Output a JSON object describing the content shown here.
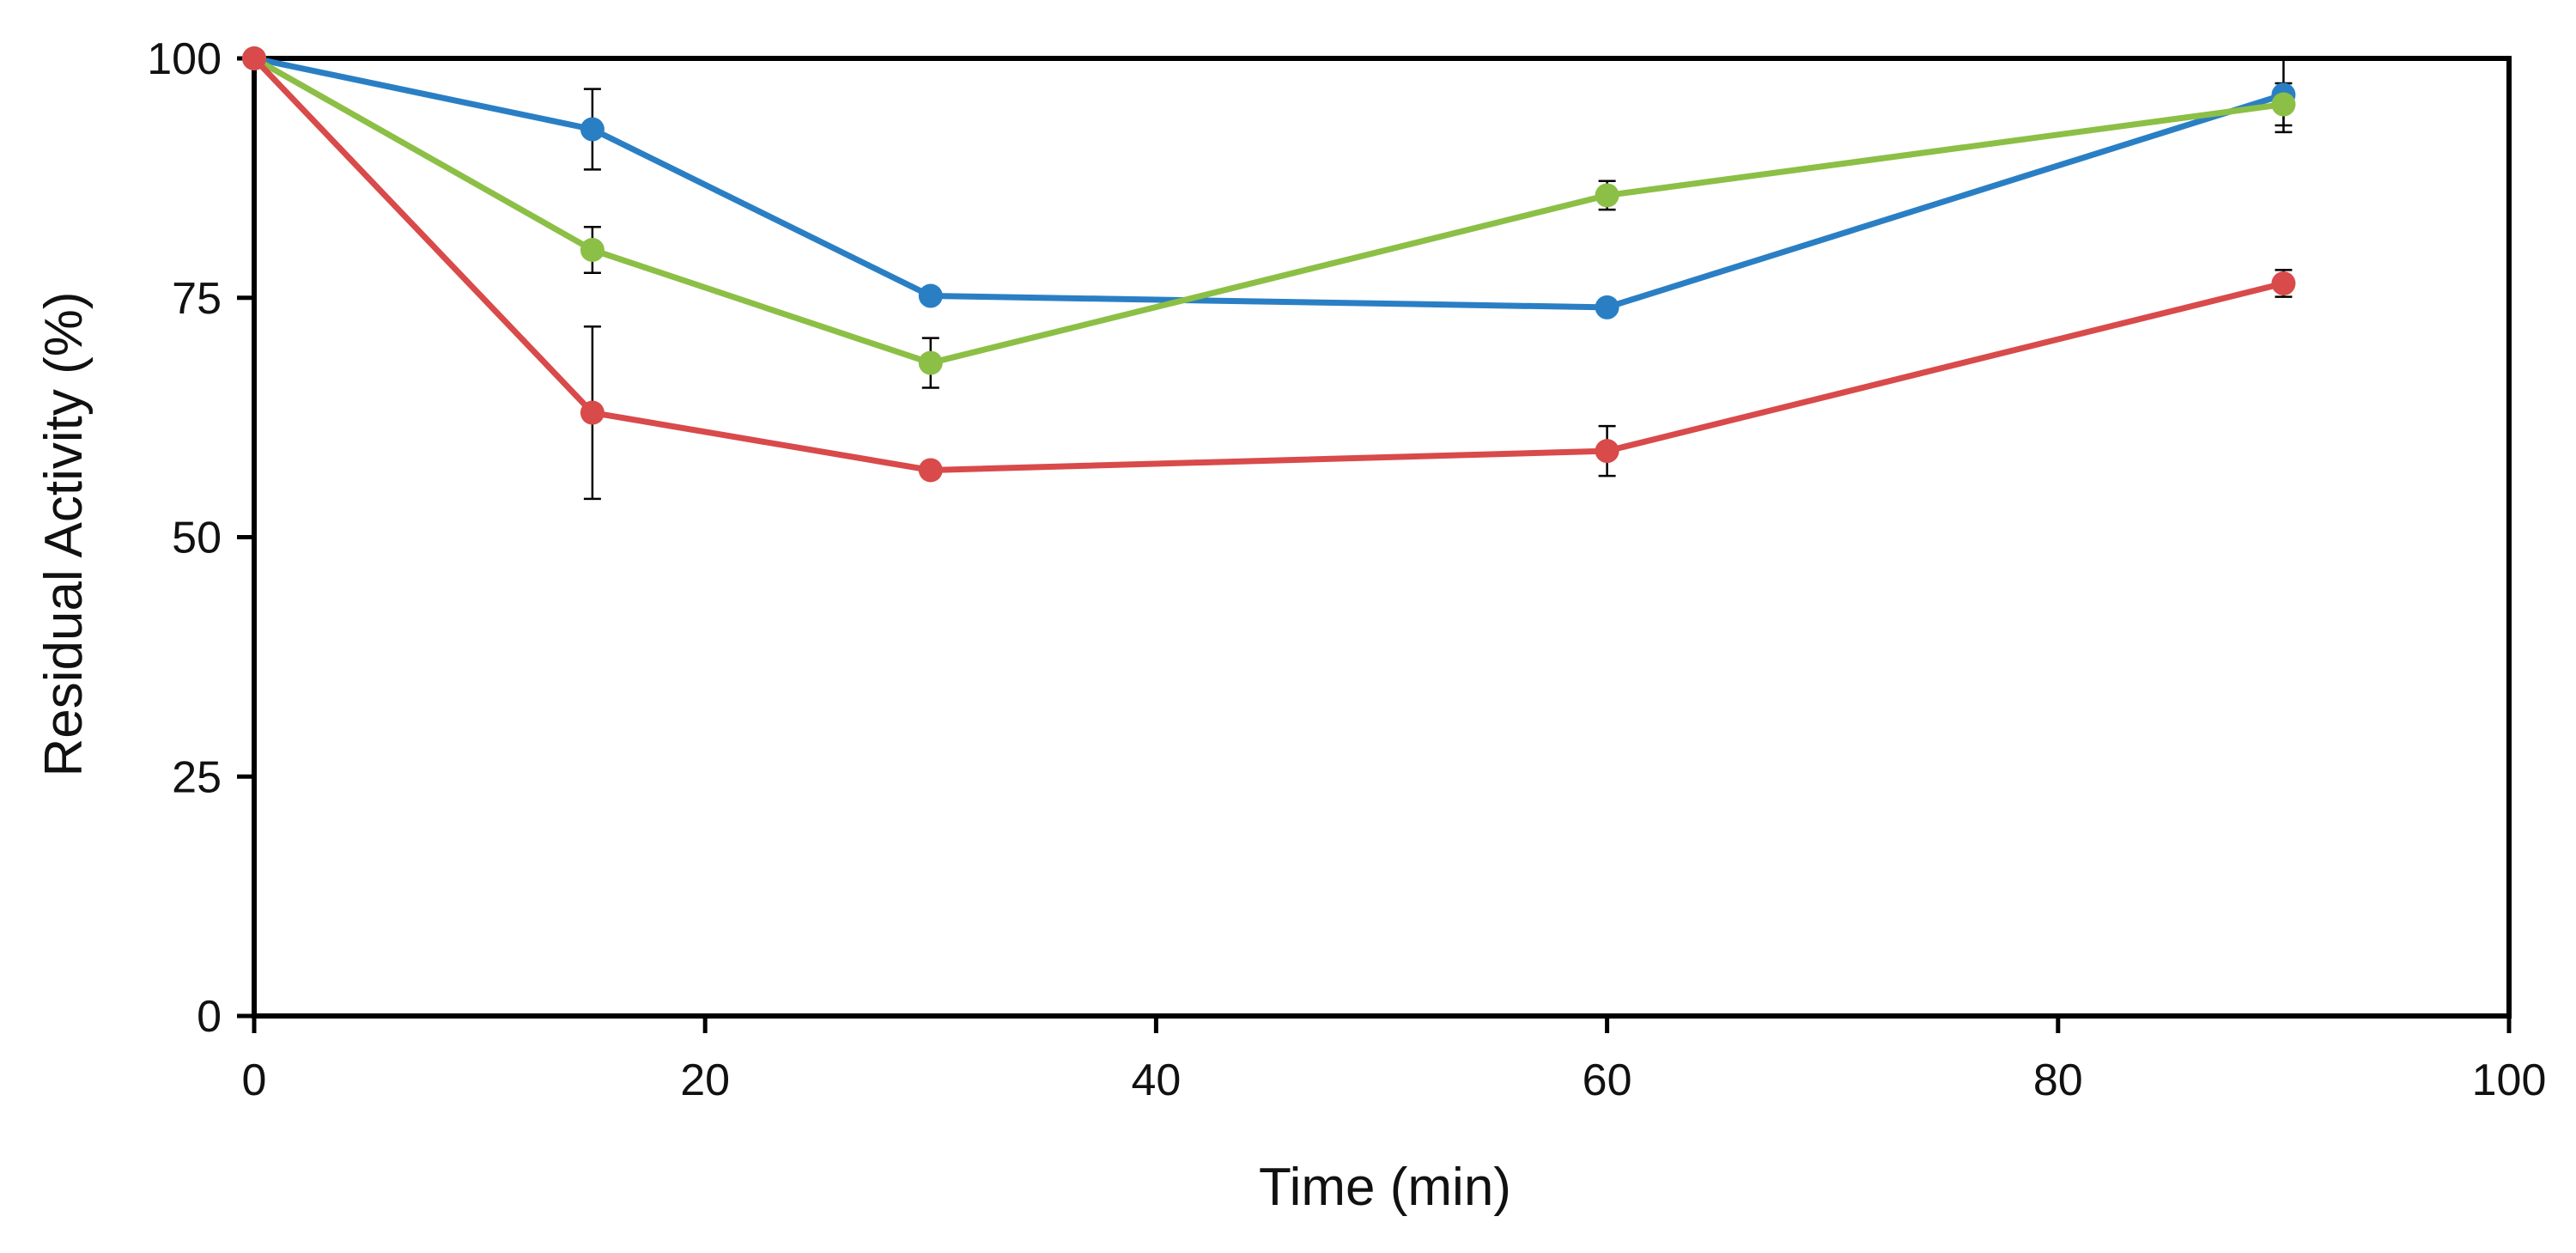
{
  "chart_data": {
    "type": "line",
    "title": "",
    "xlabel": "Time (min)",
    "ylabel": "Residual Activity (%)",
    "xlim": [
      0,
      100
    ],
    "ylim": [
      0,
      100
    ],
    "x_ticks": [
      0,
      20,
      40,
      60,
      80,
      100
    ],
    "y_ticks": [
      0,
      25,
      50,
      75,
      100
    ],
    "x_tick_labels": [
      "0",
      "20",
      "40",
      "60",
      "80",
      "100"
    ],
    "y_tick_labels": [
      "0",
      "25",
      "50",
      "75",
      "100"
    ],
    "grid": false,
    "legend": "none",
    "x": [
      0,
      15,
      30,
      60,
      90
    ],
    "series": [
      {
        "name": "blue",
        "color": "#2a7fc4",
        "values": [
          100,
          92.6,
          75.2,
          74.0,
          96.2
        ],
        "errors": [
          0,
          4.2,
          0,
          0,
          3.9
        ]
      },
      {
        "name": "green",
        "color": "#8cbf45",
        "values": [
          100,
          80.0,
          68.2,
          85.7,
          95.2
        ],
        "errors": [
          0,
          2.4,
          2.6,
          1.5,
          2.2
        ]
      },
      {
        "name": "red",
        "color": "#d94a4a",
        "values": [
          100,
          63.0,
          57.0,
          59.0,
          76.5
        ],
        "errors": [
          0,
          9.0,
          0,
          2.6,
          1.4
        ]
      }
    ]
  }
}
